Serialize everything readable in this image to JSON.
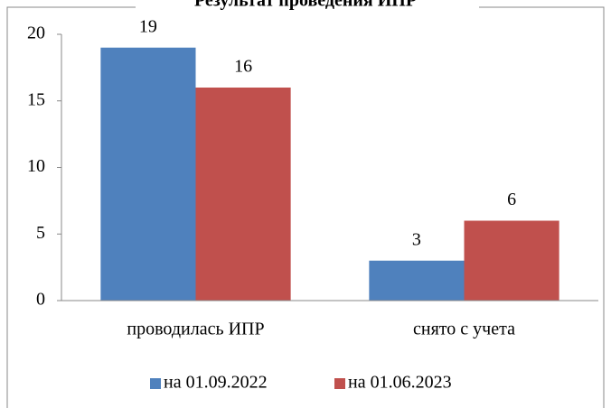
{
  "chart_data": {
    "type": "bar",
    "title": "Результат проведения ИПР",
    "categories": [
      "проводилась ИПР",
      "снято с учета"
    ],
    "series": [
      {
        "name": "на 01.09.2022",
        "color": "#4f81bd",
        "values": [
          19,
          3
        ]
      },
      {
        "name": "на 01.06.2023",
        "color": "#c0504d",
        "values": [
          16,
          6
        ]
      }
    ],
    "ylim": [
      0,
      20
    ],
    "yticks": [
      0,
      5,
      10,
      15,
      20
    ],
    "grid": false,
    "legend": "bottom"
  }
}
